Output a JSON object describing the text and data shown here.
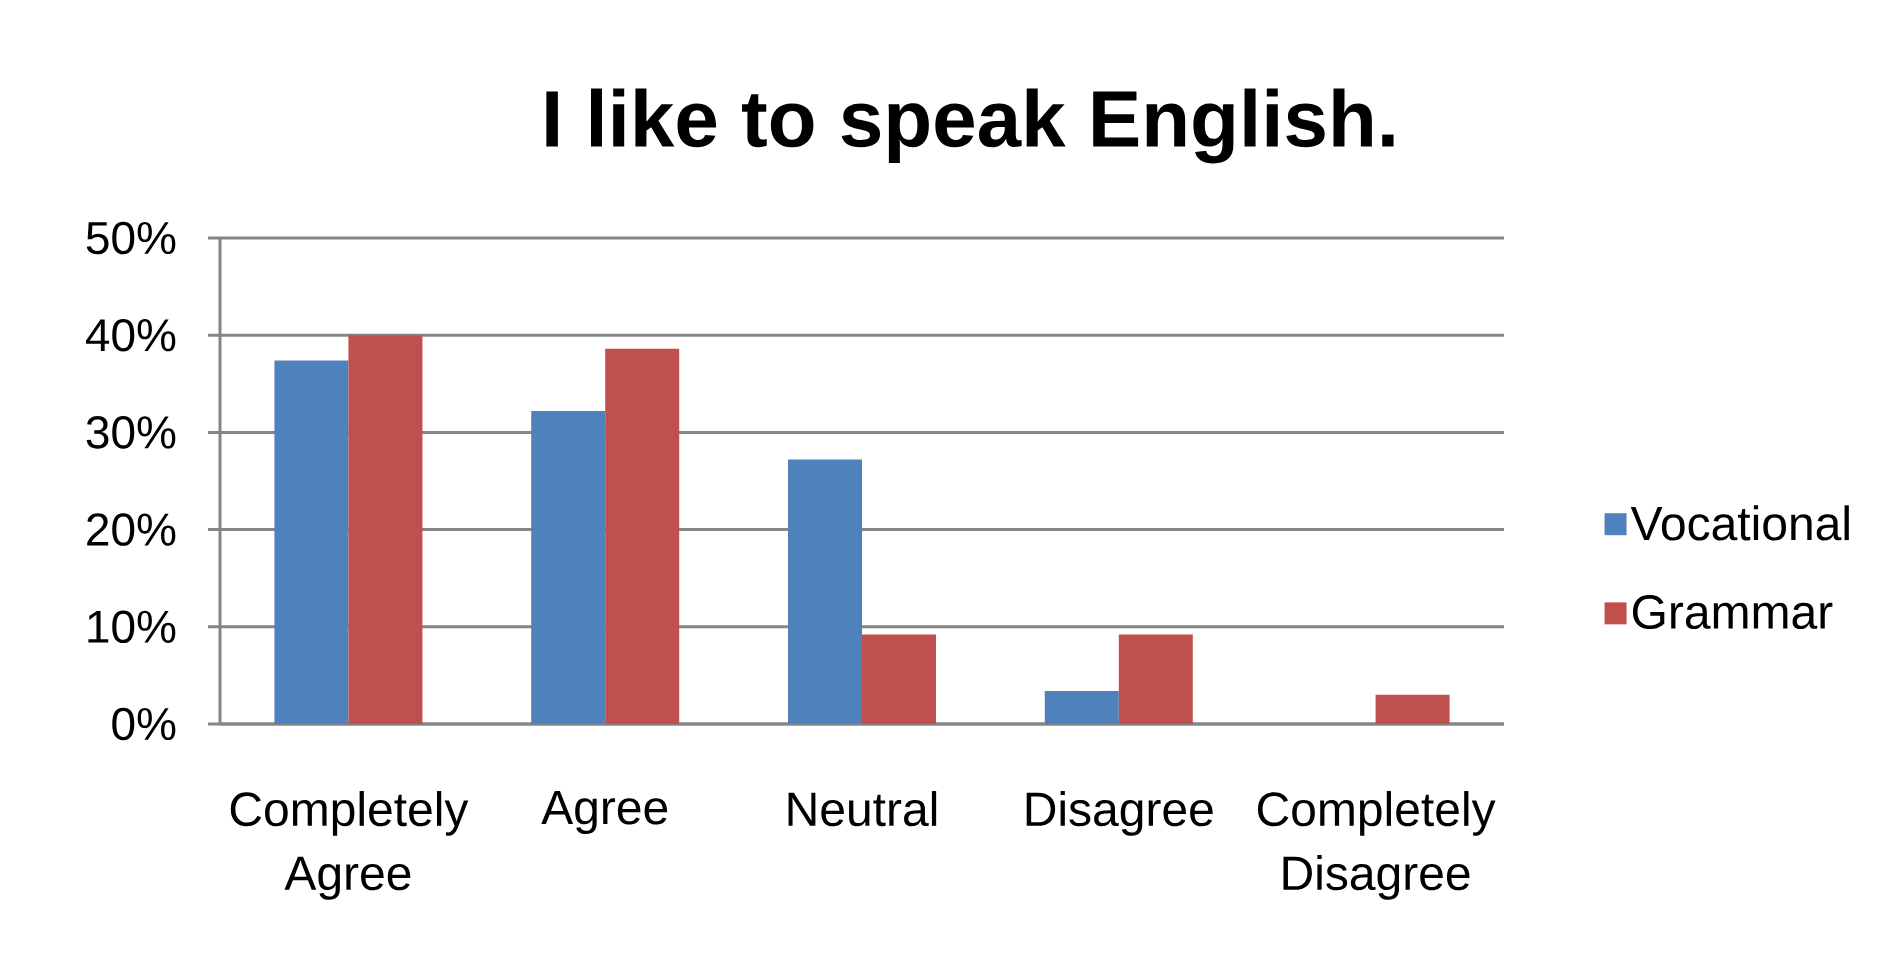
{
  "chart_data": {
    "type": "bar",
    "title": "I like to speak English.",
    "categories": [
      "Completely Agree",
      "Agree",
      "Neutral",
      "Disagree",
      "Completely Disagree"
    ],
    "series": [
      {
        "name": "Vocational",
        "color": "#4f81bd",
        "values": [
          37.4,
          32.2,
          27.2,
          3.4,
          0
        ]
      },
      {
        "name": "Grammar",
        "color": "#c0504d",
        "values": [
          40,
          38.6,
          9.2,
          9.2,
          3
        ]
      }
    ],
    "ylim": [
      0,
      50
    ],
    "yticks": [
      {
        "value": 0,
        "label": "0%"
      },
      {
        "value": 10,
        "label": "10%"
      },
      {
        "value": 20,
        "label": "20%"
      },
      {
        "value": 30,
        "label": "30%"
      },
      {
        "value": 40,
        "label": "40%"
      },
      {
        "value": 50,
        "label": "50%"
      }
    ],
    "grid": "y",
    "legend": "right"
  }
}
